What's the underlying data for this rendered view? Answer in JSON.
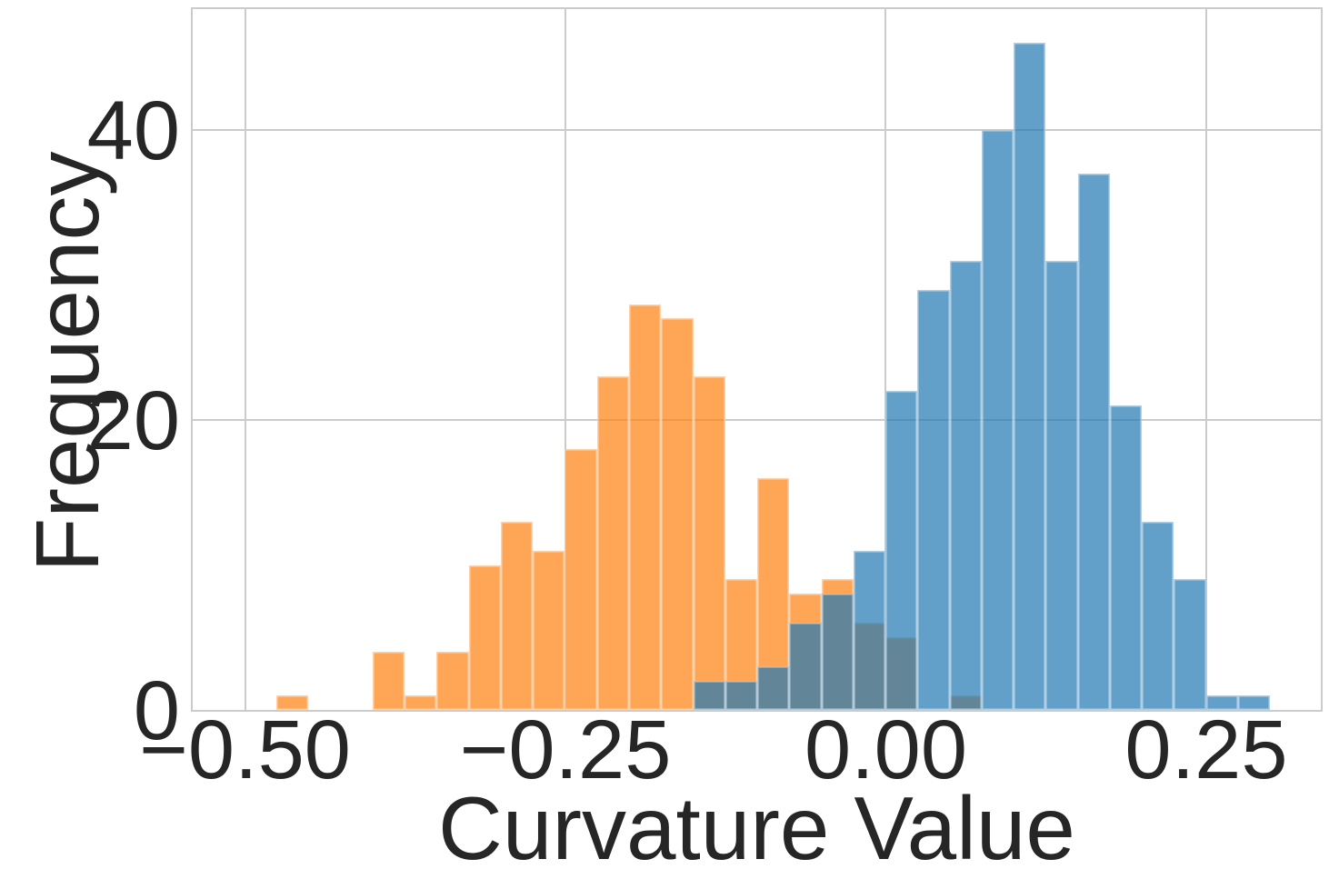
{
  "colors": {
    "background": "#ffffff",
    "grid": "#cbcbcb",
    "text": "#262626",
    "bar_edge": "rgba(255,255,255,0.5)"
  },
  "chart_data": {
    "type": "histogram",
    "title": "",
    "xlabel": "Curvature Value",
    "ylabel": "Frequency",
    "xlim": [
      -0.5408,
      0.3394
    ],
    "ylim": [
      0,
      48.35
    ],
    "grid": true,
    "legend_position": "none",
    "x_ticks": [
      {
        "value": -0.5,
        "label": "−0.50"
      },
      {
        "value": -0.25,
        "label": "−0.25"
      },
      {
        "value": 0.0,
        "label": "0.00"
      },
      {
        "value": 0.25,
        "label": "0.25"
      }
    ],
    "y_ticks": [
      {
        "value": 0,
        "label": "0"
      },
      {
        "value": 20,
        "label": "20"
      },
      {
        "value": 40,
        "label": "40"
      }
    ],
    "series": [
      {
        "name": "orange-histogram",
        "color": "#ff7f0e",
        "alpha": 0.7,
        "bin_start": -0.4755,
        "bin_width": 0.025014,
        "counts": [
          1,
          0,
          0,
          4,
          1,
          4,
          10,
          13,
          11,
          18,
          23,
          28,
          27,
          23,
          9,
          16,
          8,
          9,
          6,
          5,
          0,
          1
        ]
      },
      {
        "name": "blue-histogram",
        "color": "#1f77b4",
        "alpha": 0.7,
        "bin_start": -0.1502,
        "bin_width": 0.024995,
        "counts": [
          2,
          2,
          3,
          6,
          8,
          11,
          22,
          29,
          31,
          40,
          46,
          31,
          37,
          21,
          13,
          9,
          1,
          1
        ]
      }
    ]
  }
}
